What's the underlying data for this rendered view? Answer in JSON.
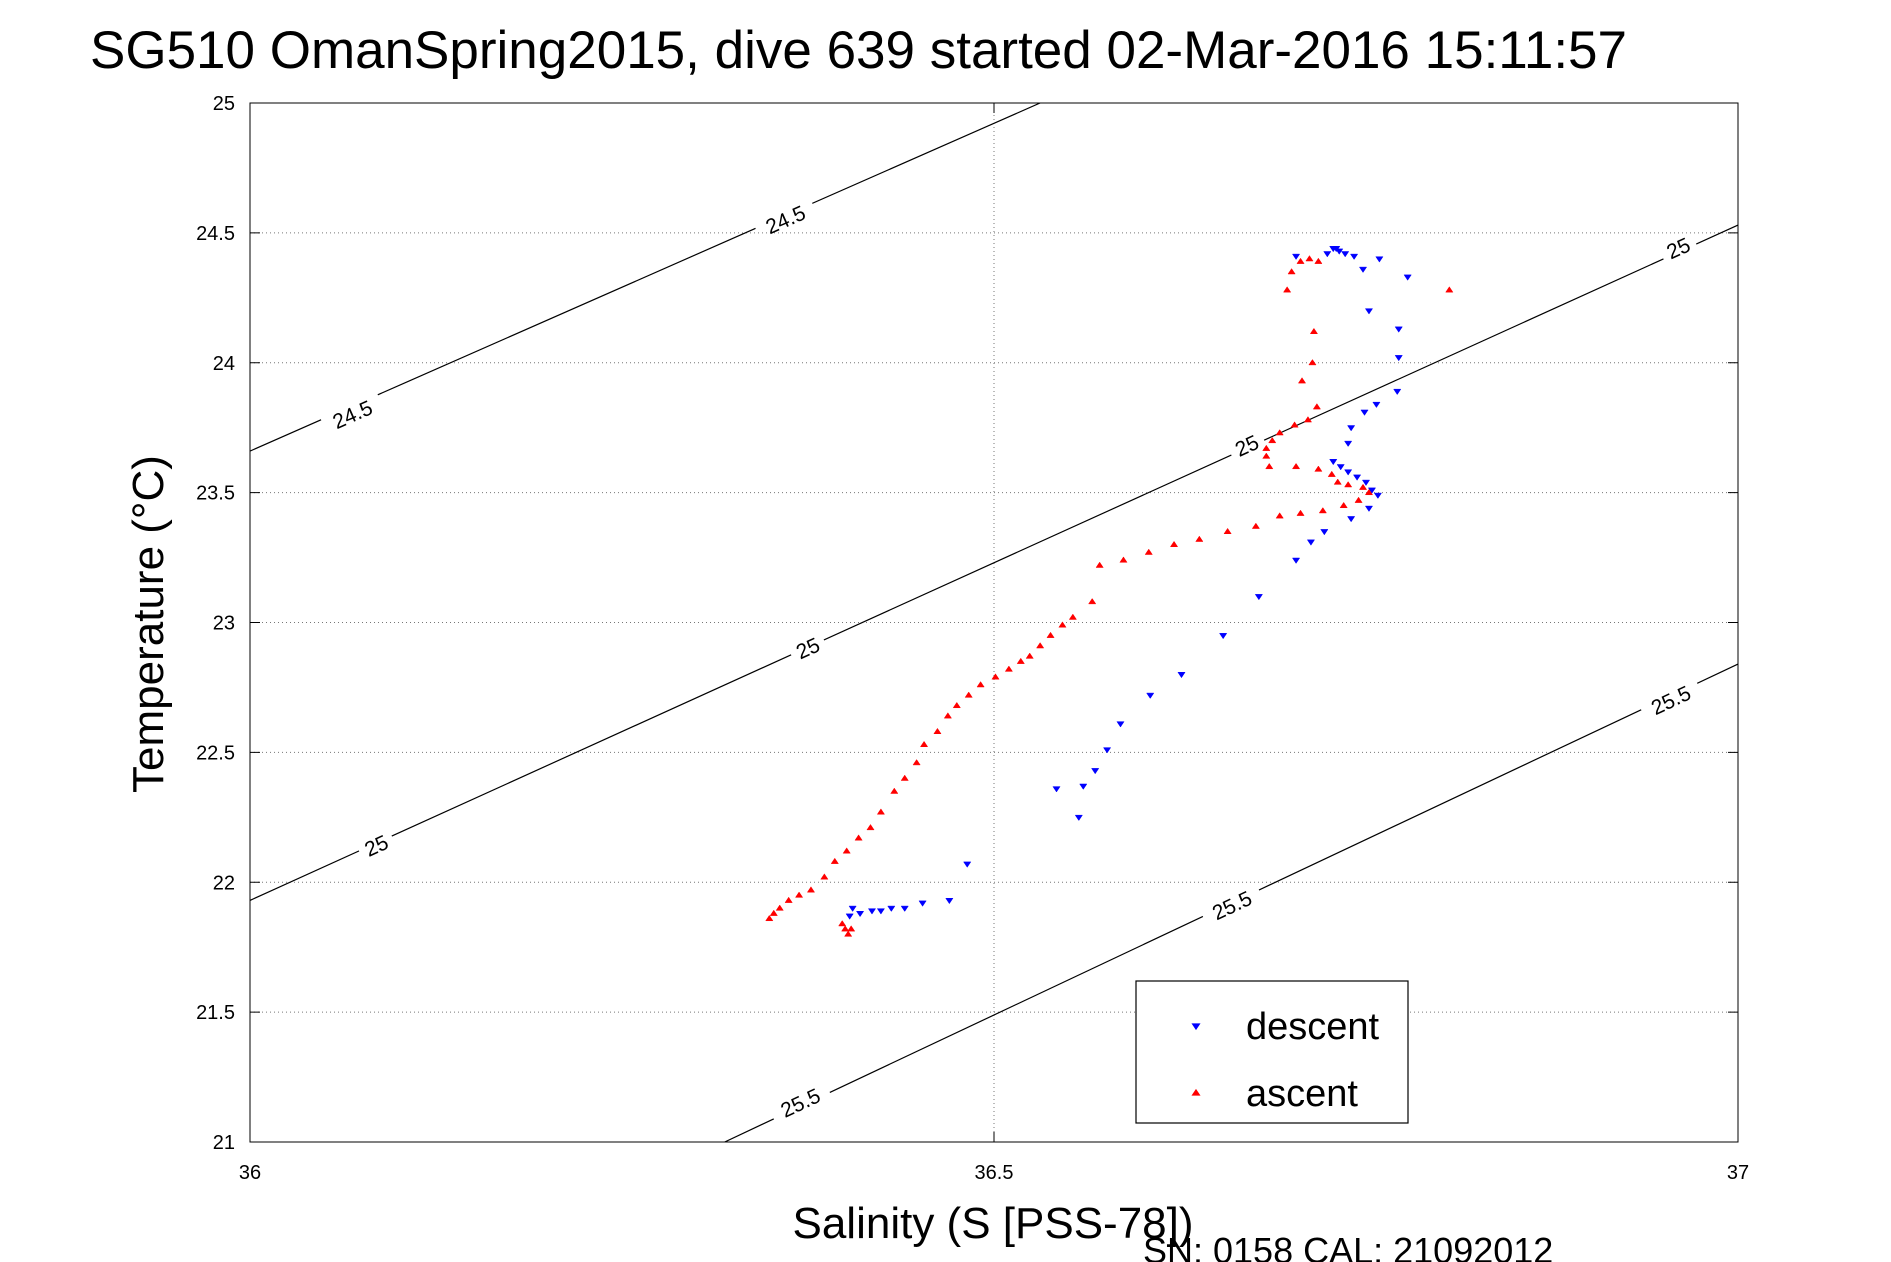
{
  "chart_data": {
    "type": "scatter",
    "title": "SG510 OmanSpring2015, dive 639 started 02-Mar-2016 15:11:57",
    "xlabel": "Salinity (S [PSS-78])",
    "ylabel": "Temperature (°C)",
    "xlim": [
      36,
      37
    ],
    "ylim": [
      21,
      25
    ],
    "x_ticks": [
      "36",
      "36.5",
      "37"
    ],
    "y_ticks": [
      "21",
      "21.5",
      "22",
      "22.5",
      "23",
      "23.5",
      "24",
      "24.5",
      "25"
    ],
    "grid": true,
    "legend_position": "bottom-right",
    "footer": "SN: 0158  CAL: 21092012",
    "contours": [
      {
        "level": "24.5",
        "points": [
          [
            36.0,
            23.66
          ],
          [
            36.531,
            25.0
          ]
        ],
        "labels": [
          {
            "x": 36.069,
            "y": 23.8,
            "text": "24.5"
          },
          {
            "x": 36.36,
            "y": 24.55,
            "text": "24.5"
          }
        ]
      },
      {
        "level": "25",
        "points": [
          [
            36.0,
            21.93
          ],
          [
            37.0,
            24.53
          ]
        ],
        "labels": [
          {
            "x": 36.085,
            "y": 22.14,
            "text": "25"
          },
          {
            "x": 36.375,
            "y": 22.9,
            "text": "25"
          },
          {
            "x": 36.67,
            "y": 23.68,
            "text": "25"
          },
          {
            "x": 36.96,
            "y": 24.44,
            "text": "25"
          }
        ]
      },
      {
        "level": "25.5",
        "points": [
          [
            36.319,
            21.0
          ],
          [
            37.0,
            22.84
          ]
        ],
        "labels": [
          {
            "x": 36.37,
            "y": 21.15,
            "text": "25.5"
          },
          {
            "x": 36.66,
            "y": 21.91,
            "text": "25.5"
          },
          {
            "x": 36.955,
            "y": 22.7,
            "text": "25.5"
          }
        ]
      }
    ],
    "series": [
      {
        "name": "descent",
        "color": "#0000ff",
        "marker": "triangle-down",
        "points": [
          [
            36.703,
            24.41
          ],
          [
            36.724,
            24.42
          ],
          [
            36.728,
            24.44
          ],
          [
            36.73,
            24.44
          ],
          [
            36.732,
            24.43
          ],
          [
            36.736,
            24.42
          ],
          [
            36.742,
            24.41
          ],
          [
            36.748,
            24.36
          ],
          [
            36.759,
            24.4
          ],
          [
            36.778,
            24.33
          ],
          [
            36.752,
            24.2
          ],
          [
            36.772,
            24.13
          ],
          [
            36.772,
            24.02
          ],
          [
            36.771,
            23.89
          ],
          [
            36.757,
            23.84
          ],
          [
            36.749,
            23.81
          ],
          [
            36.74,
            23.75
          ],
          [
            36.738,
            23.69
          ],
          [
            36.728,
            23.62
          ],
          [
            36.733,
            23.6
          ],
          [
            36.738,
            23.58
          ],
          [
            36.744,
            23.56
          ],
          [
            36.75,
            23.54
          ],
          [
            36.754,
            23.51
          ],
          [
            36.758,
            23.49
          ],
          [
            36.752,
            23.44
          ],
          [
            36.74,
            23.4
          ],
          [
            36.722,
            23.35
          ],
          [
            36.713,
            23.31
          ],
          [
            36.703,
            23.24
          ],
          [
            36.678,
            23.1
          ],
          [
            36.654,
            22.95
          ],
          [
            36.626,
            22.8
          ],
          [
            36.605,
            22.72
          ],
          [
            36.585,
            22.61
          ],
          [
            36.576,
            22.51
          ],
          [
            36.568,
            22.43
          ],
          [
            36.56,
            22.37
          ],
          [
            36.557,
            22.25
          ],
          [
            36.542,
            22.36
          ],
          [
            36.482,
            22.07
          ],
          [
            36.47,
            21.93
          ],
          [
            36.452,
            21.92
          ],
          [
            36.44,
            21.9
          ],
          [
            36.431,
            21.9
          ],
          [
            36.424,
            21.89
          ],
          [
            36.418,
            21.89
          ],
          [
            36.41,
            21.88
          ],
          [
            36.403,
            21.87
          ],
          [
            36.405,
            21.9
          ]
        ]
      },
      {
        "name": "ascent",
        "color": "#ff0000",
        "marker": "triangle-up",
        "points": [
          [
            36.806,
            24.28
          ],
          [
            36.706,
            24.39
          ],
          [
            36.712,
            24.4
          ],
          [
            36.718,
            24.39
          ],
          [
            36.7,
            24.35
          ],
          [
            36.697,
            24.28
          ],
          [
            36.715,
            24.12
          ],
          [
            36.714,
            24.0
          ],
          [
            36.707,
            23.93
          ],
          [
            36.717,
            23.83
          ],
          [
            36.711,
            23.78
          ],
          [
            36.702,
            23.76
          ],
          [
            36.692,
            23.73
          ],
          [
            36.687,
            23.7
          ],
          [
            36.683,
            23.67
          ],
          [
            36.683,
            23.64
          ],
          [
            36.685,
            23.6
          ],
          [
            36.703,
            23.6
          ],
          [
            36.718,
            23.59
          ],
          [
            36.727,
            23.57
          ],
          [
            36.731,
            23.54
          ],
          [
            36.738,
            23.53
          ],
          [
            36.748,
            23.52
          ],
          [
            36.752,
            23.5
          ],
          [
            36.745,
            23.47
          ],
          [
            36.735,
            23.45
          ],
          [
            36.721,
            23.43
          ],
          [
            36.706,
            23.42
          ],
          [
            36.692,
            23.41
          ],
          [
            36.676,
            23.37
          ],
          [
            36.657,
            23.35
          ],
          [
            36.638,
            23.32
          ],
          [
            36.621,
            23.3
          ],
          [
            36.604,
            23.27
          ],
          [
            36.587,
            23.24
          ],
          [
            36.571,
            23.22
          ],
          [
            36.566,
            23.08
          ],
          [
            36.553,
            23.02
          ],
          [
            36.546,
            22.99
          ],
          [
            36.538,
            22.95
          ],
          [
            36.531,
            22.91
          ],
          [
            36.524,
            22.87
          ],
          [
            36.518,
            22.85
          ],
          [
            36.51,
            22.82
          ],
          [
            36.501,
            22.79
          ],
          [
            36.491,
            22.76
          ],
          [
            36.483,
            22.72
          ],
          [
            36.475,
            22.68
          ],
          [
            36.469,
            22.64
          ],
          [
            36.462,
            22.58
          ],
          [
            36.453,
            22.53
          ],
          [
            36.448,
            22.46
          ],
          [
            36.44,
            22.4
          ],
          [
            36.433,
            22.35
          ],
          [
            36.424,
            22.27
          ],
          [
            36.417,
            22.21
          ],
          [
            36.409,
            22.17
          ],
          [
            36.401,
            22.12
          ],
          [
            36.393,
            22.08
          ],
          [
            36.386,
            22.02
          ],
          [
            36.377,
            21.97
          ],
          [
            36.369,
            21.95
          ],
          [
            36.362,
            21.93
          ],
          [
            36.356,
            21.9
          ],
          [
            36.352,
            21.88
          ],
          [
            36.349,
            21.86
          ],
          [
            36.398,
            21.84
          ],
          [
            36.4,
            21.82
          ],
          [
            36.402,
            21.8
          ],
          [
            36.404,
            21.82
          ]
        ]
      }
    ]
  }
}
